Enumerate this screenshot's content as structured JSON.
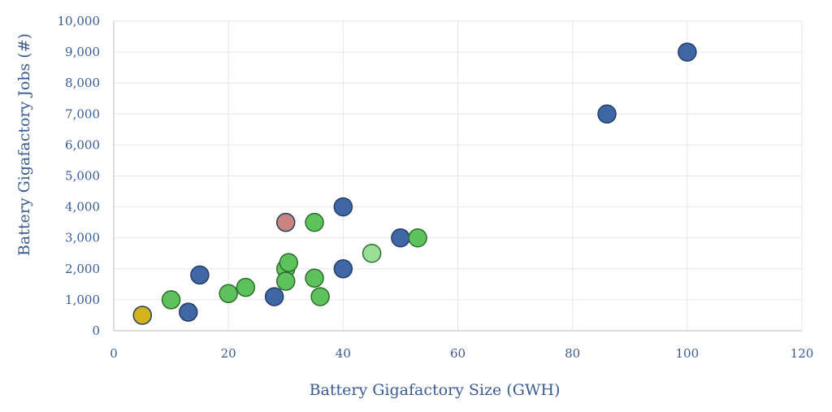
{
  "chart_data": {
    "type": "scatter",
    "xlabel": "Battery Gigafactory Size (GWH)",
    "ylabel": "Battery Gigafactory Jobs (#)",
    "xlim": [
      0,
      120
    ],
    "ylim": [
      0,
      10000
    ],
    "x_ticks": [
      "0",
      "20",
      "40",
      "60",
      "80",
      "100",
      "120"
    ],
    "y_ticks": [
      "0",
      "1,000",
      "2,000",
      "3,000",
      "4,000",
      "5,000",
      "6,000",
      "7,000",
      "8,000",
      "9,000",
      "10,000"
    ],
    "grid": true,
    "legend": "none",
    "colors": {
      "blue": "#3f67a6",
      "green": "#5cc35c",
      "light_green": "#98e098",
      "salmon": "#c98480",
      "gold": "#d4b21c",
      "outline": "#243c66",
      "green_outline": "#2f6a2f"
    },
    "points": [
      {
        "x": 5,
        "y": 500,
        "color": "gold"
      },
      {
        "x": 10,
        "y": 1000,
        "color": "green"
      },
      {
        "x": 13,
        "y": 600,
        "color": "blue"
      },
      {
        "x": 15,
        "y": 1800,
        "color": "blue"
      },
      {
        "x": 20,
        "y": 1200,
        "color": "green"
      },
      {
        "x": 23,
        "y": 1400,
        "color": "green"
      },
      {
        "x": 28,
        "y": 1100,
        "color": "blue"
      },
      {
        "x": 30,
        "y": 3500,
        "color": "salmon"
      },
      {
        "x": 30,
        "y": 2000,
        "color": "green"
      },
      {
        "x": 30,
        "y": 1600,
        "color": "green"
      },
      {
        "x": 30.5,
        "y": 2200,
        "color": "green"
      },
      {
        "x": 35,
        "y": 3500,
        "color": "green"
      },
      {
        "x": 35,
        "y": 1700,
        "color": "green"
      },
      {
        "x": 36,
        "y": 1100,
        "color": "green"
      },
      {
        "x": 40,
        "y": 4000,
        "color": "blue"
      },
      {
        "x": 40,
        "y": 2000,
        "color": "blue"
      },
      {
        "x": 45,
        "y": 2500,
        "color": "light_green"
      },
      {
        "x": 50,
        "y": 3000,
        "color": "blue"
      },
      {
        "x": 53,
        "y": 3000,
        "color": "green"
      },
      {
        "x": 86,
        "y": 7000,
        "color": "blue"
      },
      {
        "x": 100,
        "y": 9000,
        "color": "blue"
      }
    ]
  }
}
